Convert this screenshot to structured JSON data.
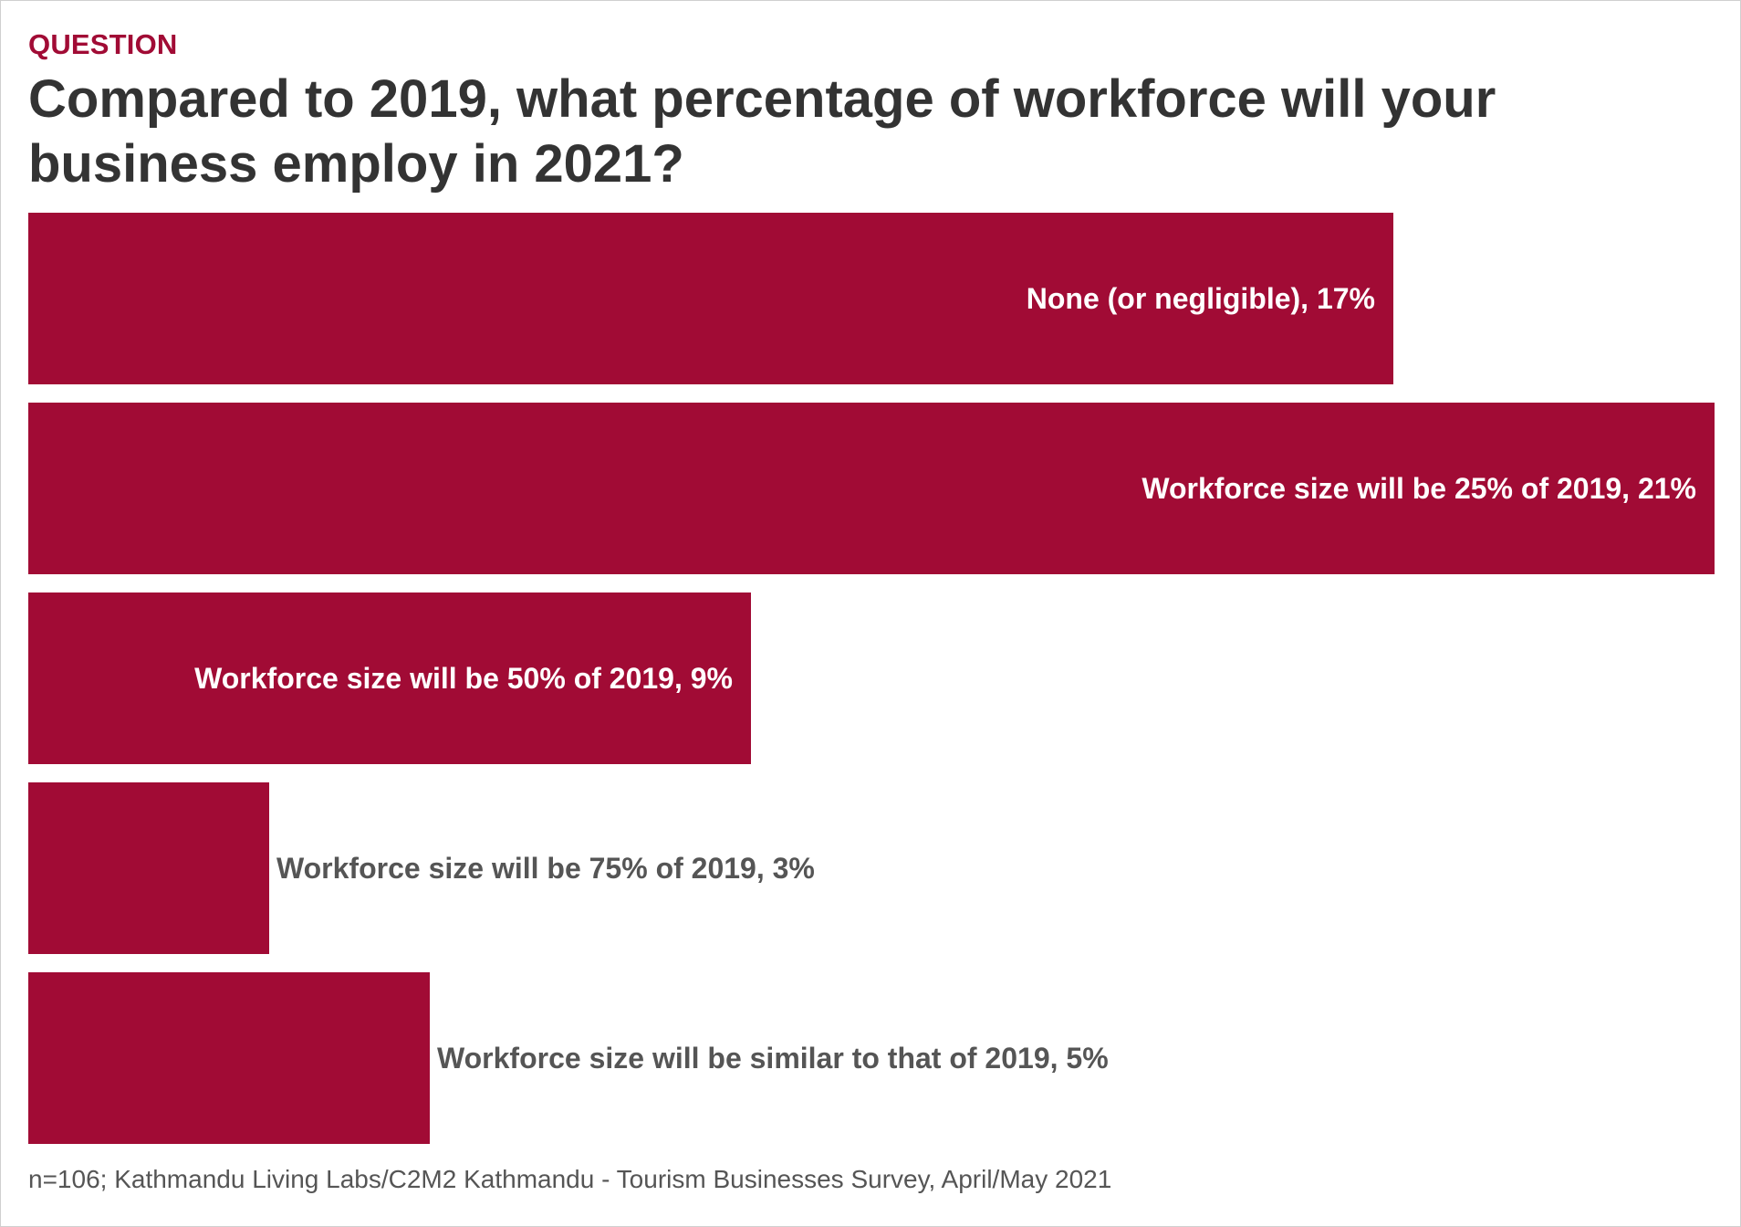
{
  "header": {
    "kicker": "QUESTION",
    "title": "Compared to 2019, what percentage of workforce will your business employ in 2021?"
  },
  "colors": {
    "bar": "#a10b35",
    "label_inside": "#ffffff",
    "label_outside": "#555555",
    "title": "#333333",
    "kicker": "#a10b35"
  },
  "chart_data": {
    "type": "bar",
    "orientation": "horizontal",
    "categories": [
      "None (or negligible)",
      "Workforce size will be 25% of 2019",
      "Workforce size will be 50% of 2019",
      "Workforce size will be 75% of 2019",
      "Workforce size will be similar to that of 2019"
    ],
    "values": [
      17,
      21,
      9,
      3,
      5
    ],
    "data_labels": [
      "None (or negligible), 17%",
      "Workforce size will be 25% of 2019, 21%",
      "Workforce size will be 50% of 2019, 9%",
      "Workforce size will be 75% of 2019, 3%",
      "Workforce size will be similar to that of 2019, 5%"
    ],
    "unit": "%",
    "xlim": [
      0,
      21
    ],
    "grid": false,
    "legend": "none",
    "title": "Compared to 2019, what percentage of workforce will your business employ in 2021?",
    "xlabel": "",
    "ylabel": ""
  },
  "footer": {
    "source": "n=106; Kathmandu Living Labs/C2M2 Kathmandu - Tourism Businesses Survey, April/May 2021"
  }
}
